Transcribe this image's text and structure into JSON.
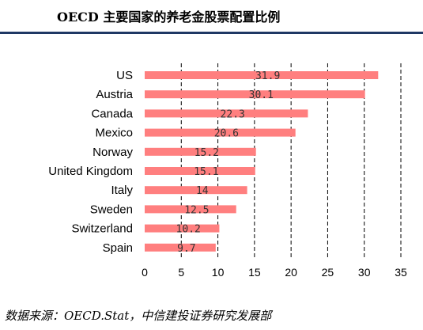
{
  "title": "OECD 主要国家的养老金股票配置比例",
  "source": "数据来源：OECD.Stat，中信建投证券研究发展部",
  "colors": {
    "bar": "#ff7f7f",
    "title_rule": "#1f3864",
    "grid": "#000000"
  },
  "chart_data": {
    "type": "bar",
    "orientation": "horizontal",
    "categories": [
      "US",
      "Austria",
      "Canada",
      "Mexico",
      "Norway",
      "United Kingdom",
      "Italy",
      "Sweden",
      "Switzerland",
      "Spain"
    ],
    "values": [
      31.9,
      30.1,
      22.3,
      20.6,
      15.2,
      15.1,
      14,
      12.5,
      10.2,
      9.7
    ],
    "value_labels": [
      "31.9",
      "30.1",
      "22.3",
      "20.6",
      "15.2",
      "15.1",
      "14",
      "12.5",
      "10.2",
      "9.7"
    ],
    "xticks": [
      "0",
      "5",
      "10",
      "15",
      "20",
      "25",
      "30",
      "35"
    ],
    "xlim": [
      0,
      35
    ],
    "grid": "vertical-dashed",
    "legend": "none"
  }
}
